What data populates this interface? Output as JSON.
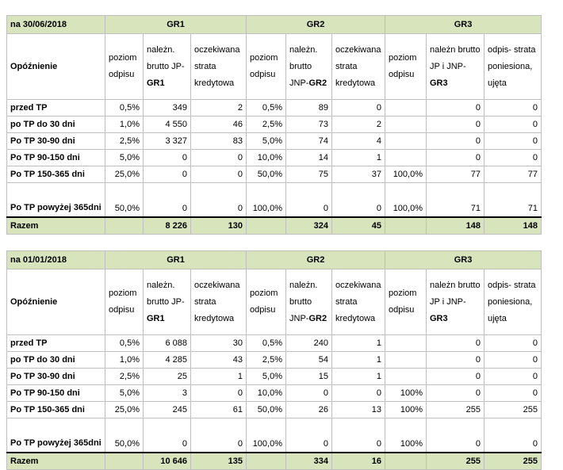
{
  "tables": [
    {
      "date_label": "na 30/06/2018",
      "groups": [
        "GR1",
        "GR2",
        "GR3"
      ],
      "row_header": "Opóźnienie",
      "col_poziom": "poziom odpisu",
      "col_nalezn_gr1": "należn. brutto JP-",
      "col_nalezn_gr1_bold": "GR1",
      "col_oczek": "oczekiwana strata kredytowa",
      "col_nalezn_gr2": "należn. brutto JNP-",
      "col_nalezn_gr2_bold": "GR2",
      "col_nalezn_gr3": "należn brutto JP i JNP-",
      "col_nalezn_gr3_bold": "GR3",
      "col_odpis": "odpis- strata poniesiona, ujęta",
      "rows": [
        [
          "przed TP",
          "0,5%",
          "349",
          "2",
          "0,5%",
          "89",
          "0",
          "",
          "0",
          "0"
        ],
        [
          "po TP do 30 dni",
          "1,0%",
          "4 550",
          "46",
          "2,5%",
          "73",
          "2",
          "",
          "0",
          "0"
        ],
        [
          "Po TP 30-90 dni",
          "2,5%",
          "3 327",
          "83",
          "5,0%",
          "74",
          "4",
          "",
          "0",
          "0"
        ],
        [
          "Po TP 90-150 dni",
          "5,0%",
          "0",
          "0",
          "10,0%",
          "14",
          "1",
          "",
          "0",
          "0"
        ],
        [
          "Po TP 150-365 dni",
          "25,0%",
          "0",
          "0",
          "50,0%",
          "75",
          "37",
          "100,0%",
          "77",
          "77"
        ],
        [
          "Po TP powyżej 365dni",
          "50,0%",
          "0",
          "0",
          "100,0%",
          "0",
          "0",
          "100,0%",
          "71",
          "71"
        ]
      ],
      "total": [
        "Razem",
        "",
        "8 226",
        "130",
        "",
        "324",
        "45",
        "",
        "148",
        "148"
      ]
    },
    {
      "date_label": "na 01/01/2018",
      "groups": [
        "GR1",
        "GR2",
        "GR3"
      ],
      "row_header": "Opóźnienie",
      "col_poziom": "poziom odpisu",
      "col_nalezn_gr1": "należn. brutto JP-",
      "col_nalezn_gr1_bold": "GR1",
      "col_oczek": "oczekiwana strata kredytowa",
      "col_nalezn_gr2": "należn. brutto JNP-",
      "col_nalezn_gr2_bold": "GR2",
      "col_nalezn_gr3": "należn brutto JP i JNP-",
      "col_nalezn_gr3_bold": "GR3",
      "col_odpis": "odpis- strata poniesiona, ujęta",
      "rows": [
        [
          "przed TP",
          "0,5%",
          "6 088",
          "30",
          "0,5%",
          "240",
          "1",
          "",
          "0",
          "0"
        ],
        [
          "po TP do 30 dni",
          "1,0%",
          "4 285",
          "43",
          "2,5%",
          "54",
          "1",
          "",
          "0",
          "0"
        ],
        [
          "Po TP 30-90 dni",
          "2,5%",
          "25",
          "1",
          "5,0%",
          "15",
          "1",
          "",
          "0",
          "0"
        ],
        [
          "Po TP 90-150 dni",
          "5,0%",
          "3",
          "0",
          "10,0%",
          "0",
          "0",
          "100%",
          "0",
          "0"
        ],
        [
          "Po TP 150-365 dni",
          "25,0%",
          "245",
          "61",
          "50,0%",
          "26",
          "13",
          "100%",
          "255",
          "255"
        ],
        [
          "Po TP powyżej 365dni",
          "50,0%",
          "0",
          "0",
          "100,0%",
          "0",
          "0",
          "100%",
          "0",
          "0"
        ]
      ],
      "total": [
        "Razem",
        "",
        "10 646",
        "135",
        "",
        "334",
        "16",
        "",
        "255",
        "255"
      ]
    }
  ]
}
